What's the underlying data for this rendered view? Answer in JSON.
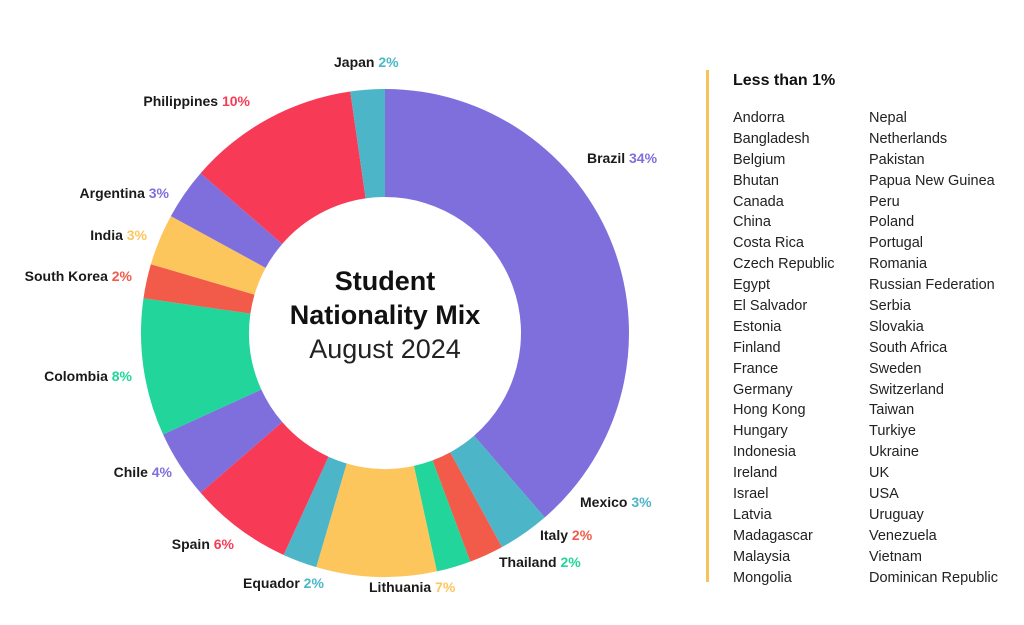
{
  "chart_data": {
    "type": "pie",
    "title": "Student Nationality Mix",
    "subtitle": "August 2024",
    "slices": [
      {
        "label": "Brazil",
        "value": 34,
        "display": "34%",
        "color": "#7f6fdd",
        "label_color": "#7f6fdd"
      },
      {
        "label": "Mexico",
        "value": 3,
        "display": "3%",
        "color": "#4cb6c8",
        "label_color": "#4cb6c8"
      },
      {
        "label": "Italy",
        "value": 2,
        "display": "2%",
        "color": "#f25a4a",
        "label_color": "#f25a4a"
      },
      {
        "label": "Thailand",
        "value": 2,
        "display": "2%",
        "color": "#22d59a",
        "label_color": "#22d59a"
      },
      {
        "label": "Lithuania",
        "value": 7,
        "display": "7%",
        "color": "#fdc65d",
        "label_color": "#fdc65d"
      },
      {
        "label": "Equador",
        "value": 2,
        "display": "2%",
        "color": "#4cb6c8",
        "label_color": "#4cb6c8"
      },
      {
        "label": "Spain",
        "value": 6,
        "display": "6%",
        "color": "#f73b57",
        "label_color": "#f73b57"
      },
      {
        "label": "Chile",
        "value": 4,
        "display": "4%",
        "color": "#7f6fdd",
        "label_color": "#7f6fdd"
      },
      {
        "label": "Colombia",
        "value": 8,
        "display": "8%",
        "color": "#22d59a",
        "label_color": "#22d59a"
      },
      {
        "label": "South Korea",
        "value": 2,
        "display": "2%",
        "color": "#f25a4a",
        "label_color": "#f25a4a"
      },
      {
        "label": "India",
        "value": 3,
        "display": "3%",
        "color": "#fdc65d",
        "label_color": "#fdc65d"
      },
      {
        "label": "Argentina",
        "value": 3,
        "display": "3%",
        "color": "#7f6fdd",
        "label_color": "#7f6fdd"
      },
      {
        "label": "Philippines",
        "value": 10,
        "display": "10%",
        "color": "#f73b57",
        "label_color": "#f73b57"
      },
      {
        "label": "Japan",
        "value": 2,
        "display": "2%",
        "color": "#4cb6c8",
        "label_color": "#4cb6c8"
      }
    ]
  },
  "side_panel": {
    "title": "Less than 1%",
    "col_left": [
      "Andorra",
      "Bangladesh",
      "Belgium",
      "Bhutan",
      "Canada",
      "China",
      "Costa Rica",
      "Czech Republic",
      "Egypt",
      "El Salvador",
      "Estonia",
      "Finland",
      "France",
      "Germany",
      "Hong Kong",
      "Hungary",
      "Indonesia",
      "Ireland",
      "Israel",
      "Latvia",
      "Madagascar",
      "Malaysia",
      "Mongolia"
    ],
    "col_right": [
      "Nepal",
      "Netherlands",
      "Pakistan",
      "Papua New Guinea",
      "Peru",
      "Poland",
      "Portugal",
      "Romania",
      "Russian Federation",
      "Serbia",
      "Slovakia",
      "South Africa",
      "Sweden",
      "Switzerland",
      "Taiwan",
      "Turkiye",
      "Ukraine",
      "UK",
      "USA",
      "Uruguay",
      "Venezuela",
      "Vietnam",
      "Dominican Republic"
    ],
    "divider_color": "#f5c35a"
  }
}
